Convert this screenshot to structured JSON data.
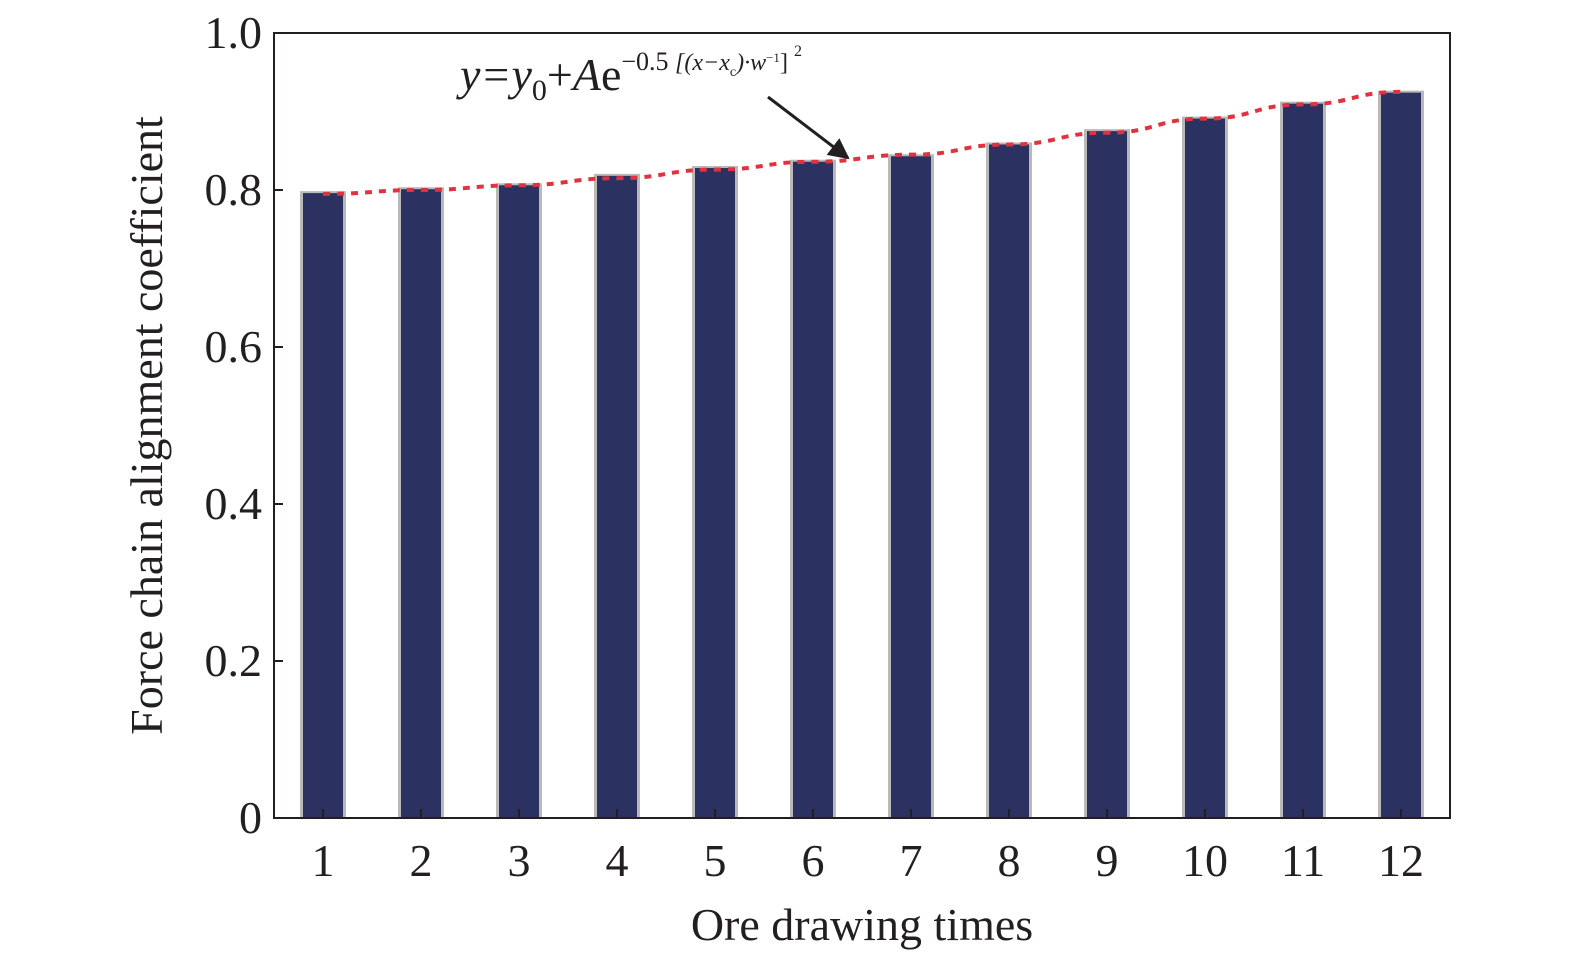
{
  "chart_data": {
    "type": "bar",
    "categories": [
      "1",
      "2",
      "3",
      "4",
      "5",
      "6",
      "7",
      "8",
      "9",
      "10",
      "11",
      "12"
    ],
    "values": [
      0.796,
      0.801,
      0.806,
      0.818,
      0.828,
      0.836,
      0.843,
      0.858,
      0.875,
      0.891,
      0.91,
      0.924
    ],
    "fit_curve": {
      "type": "gauss",
      "equation": {
        "base": "y=y",
        "base_sub": "0",
        "plus": "+",
        "amp": "A",
        "exp_base": "e",
        "exponent": "−0.5",
        "bracket": "[(x−x",
        "bracket_sub": "c",
        "bracket_mid": ")·w",
        "bracket_sup": "−1",
        "bracket_end": "]",
        "square": "2"
      },
      "values": [
        0.795,
        0.8,
        0.806,
        0.815,
        0.826,
        0.836,
        0.845,
        0.858,
        0.873,
        0.891,
        0.909,
        0.925
      ]
    },
    "xlabel": "Ore drawing times",
    "ylabel": "Force chain alignment coefficient",
    "ylim": [
      0,
      1.0
    ],
    "yticks": [
      "0",
      "0.2",
      "0.4",
      "0.6",
      "0.8",
      "1.0"
    ],
    "ytick_values": [
      0,
      0.2,
      0.4,
      0.6,
      0.8,
      1.0
    ],
    "grid": false,
    "legend": "none",
    "colors": {
      "bar": "#2b3160",
      "bar_shadow": "#b9b9b9",
      "fit_line": "#e0333f",
      "axis": "#231f20",
      "text": "#231f20",
      "arrow": "#231f20"
    }
  }
}
